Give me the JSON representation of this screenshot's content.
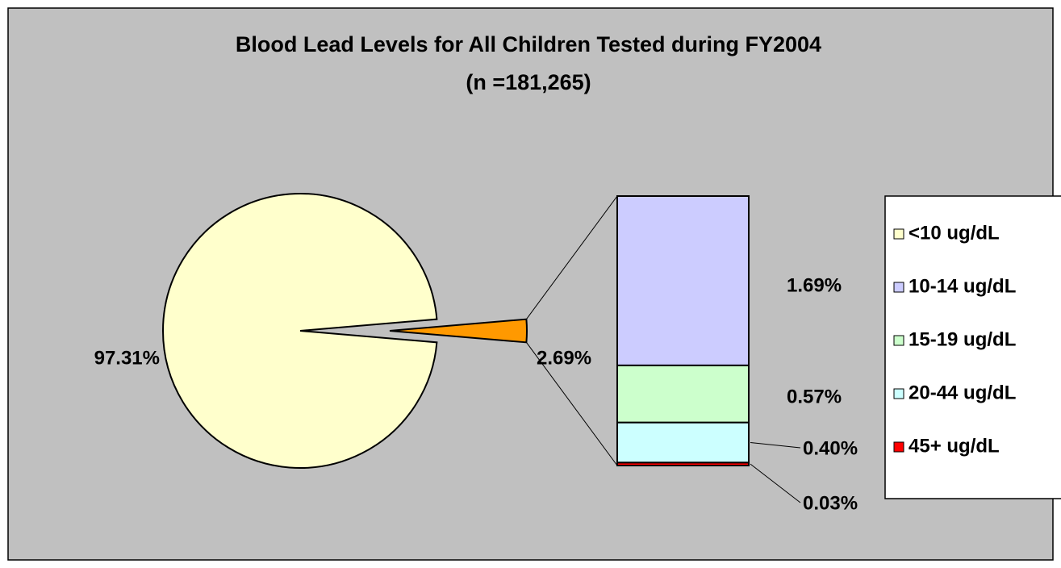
{
  "chart_data": {
    "type": "pie",
    "title": "Blood Lead Levels for All Children Tested during FY2004",
    "subtitle": "(n =181,265)",
    "categories": [
      "<10 ug/dL",
      "10-14 ug/dL",
      "15-19 ug/dL",
      "20-44 ug/dL",
      "45+ ug/dL"
    ],
    "values": [
      97.31,
      1.69,
      0.57,
      0.4,
      0.03
    ],
    "value_labels": [
      "97.31%",
      "1.69%",
      "0.57%",
      "0.40%",
      "0.03%"
    ],
    "colors": [
      "#ffffcc",
      "#ccccff",
      "#ccffcc",
      "#ccffff",
      "#ff0000"
    ],
    "other": {
      "value": 2.69,
      "value_label": "2.69%",
      "color": "#ff9900"
    }
  }
}
